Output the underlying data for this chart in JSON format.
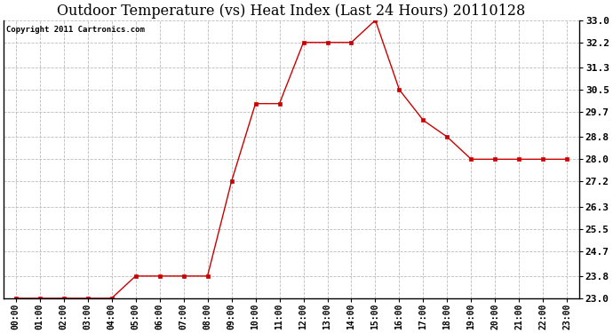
{
  "title": "Outdoor Temperature (vs) Heat Index (Last 24 Hours) 20110128",
  "copyright": "Copyright 2011 Cartronics.com",
  "x_labels": [
    "00:00",
    "01:00",
    "02:00",
    "03:00",
    "04:00",
    "05:00",
    "06:00",
    "07:00",
    "08:00",
    "09:00",
    "10:00",
    "11:00",
    "12:00",
    "13:00",
    "14:00",
    "15:00",
    "16:00",
    "17:00",
    "18:00",
    "19:00",
    "20:00",
    "21:00",
    "22:00",
    "23:00"
  ],
  "y_values": [
    23.0,
    23.0,
    23.0,
    23.0,
    23.0,
    23.8,
    23.8,
    23.8,
    23.8,
    27.2,
    30.0,
    30.0,
    32.2,
    32.2,
    32.2,
    33.0,
    30.5,
    29.4,
    28.8,
    28.0,
    28.0,
    28.0,
    28.0,
    28.0
  ],
  "line_color": "#cc0000",
  "marker": "s",
  "marker_size": 2.5,
  "ylim_min": 23.0,
  "ylim_max": 33.0,
  "yticks": [
    23.0,
    23.8,
    24.7,
    25.5,
    26.3,
    27.2,
    28.0,
    28.8,
    29.7,
    30.5,
    31.3,
    32.2,
    33.0
  ],
  "background_color": "#ffffff",
  "plot_bg_color": "#ffffff",
  "grid_color": "#bbbbbb",
  "title_fontsize": 11.5,
  "copyright_fontsize": 6.5,
  "tick_fontsize": 7,
  "ytick_fontsize": 8
}
